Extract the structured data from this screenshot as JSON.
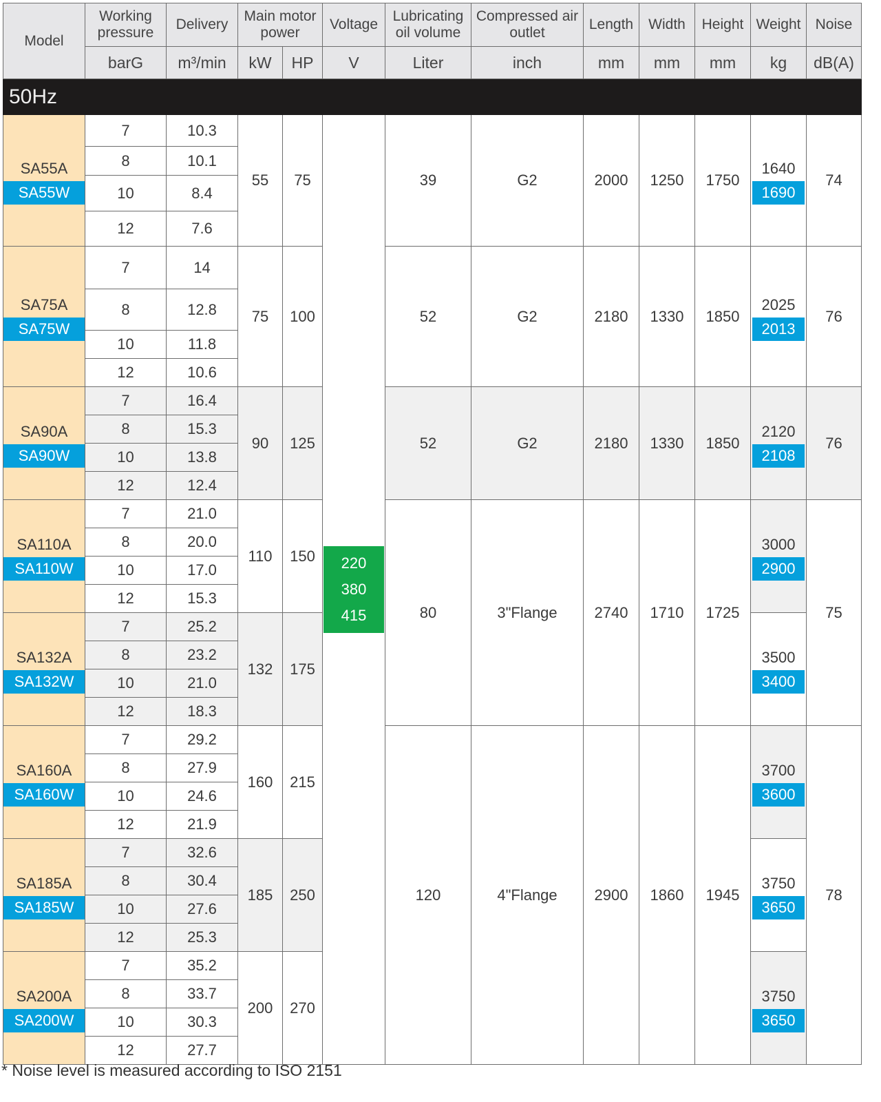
{
  "header": {
    "model": "Model",
    "working_pressure": "Working pressure",
    "delivery": "Delivery",
    "motor_power": "Main motor power",
    "voltage": "Voltage",
    "oil_volume": "Lubricating oil volume",
    "air_outlet": "Compressed air outlet",
    "length": "Length",
    "width": "Width",
    "height": "Height",
    "weight": "Weight",
    "noise": "Noise",
    "units": {
      "pressure": "barG",
      "delivery": "m³/min",
      "kw": "kW",
      "hp": "HP",
      "voltage": "V",
      "oil": "Liter",
      "outlet": "inch",
      "length": "mm",
      "width": "mm",
      "height": "mm",
      "weight": "kg",
      "noise": "dB(A)"
    }
  },
  "frequency_band": "50Hz",
  "voltage_values": [
    "220",
    "380",
    "415"
  ],
  "colors": {
    "model_bg": "#fde3b8",
    "water_cooled_blue": "#05a0dc",
    "voltage_green": "#13a84a",
    "band_black": "#1d1b1b"
  },
  "models": [
    {
      "air": "SA55A",
      "water": "SA55W",
      "pressures": [
        "7",
        "8",
        "10",
        "12"
      ],
      "delivery": [
        "10.3",
        "10.1",
        "8.4",
        "7.6"
      ],
      "kw": "55",
      "hp": "75",
      "weight_a": "1640",
      "weight_w": "1690"
    },
    {
      "air": "SA75A",
      "water": "SA75W",
      "pressures": [
        "7",
        "8",
        "10",
        "12"
      ],
      "delivery": [
        "14",
        "12.8",
        "11.8",
        "10.6"
      ],
      "kw": "75",
      "hp": "100",
      "weight_a": "2025",
      "weight_w": "2013"
    },
    {
      "air": "SA90A",
      "water": "SA90W",
      "pressures": [
        "7",
        "8",
        "10",
        "12"
      ],
      "delivery": [
        "16.4",
        "15.3",
        "13.8",
        "12.4"
      ],
      "kw": "90",
      "hp": "125",
      "weight_a": "2120",
      "weight_w": "2108"
    },
    {
      "air": "SA110A",
      "water": "SA110W",
      "pressures": [
        "7",
        "8",
        "10",
        "12"
      ],
      "delivery": [
        "21.0",
        "20.0",
        "17.0",
        "15.3"
      ],
      "kw": "110",
      "hp": "150",
      "weight_a": "3000",
      "weight_w": "2900"
    },
    {
      "air": "SA132A",
      "water": "SA132W",
      "pressures": [
        "7",
        "8",
        "10",
        "12"
      ],
      "delivery": [
        "25.2",
        "23.2",
        "21.0",
        "18.3"
      ],
      "kw": "132",
      "hp": "175",
      "weight_a": "3500",
      "weight_w": "3400"
    },
    {
      "air": "SA160A",
      "water": "SA160W",
      "pressures": [
        "7",
        "8",
        "10",
        "12"
      ],
      "delivery": [
        "29.2",
        "27.9",
        "24.6",
        "21.9"
      ],
      "kw": "160",
      "hp": "215",
      "weight_a": "3700",
      "weight_w": "3600"
    },
    {
      "air": "SA185A",
      "water": "SA185W",
      "pressures": [
        "7",
        "8",
        "10",
        "12"
      ],
      "delivery": [
        "32.6",
        "30.4",
        "27.6",
        "25.3"
      ],
      "kw": "185",
      "hp": "250",
      "weight_a": "3750",
      "weight_w": "3650"
    },
    {
      "air": "SA200A",
      "water": "SA200W",
      "pressures": [
        "7",
        "8",
        "10",
        "12"
      ],
      "delivery": [
        "35.2",
        "33.7",
        "30.3",
        "27.7"
      ],
      "kw": "200",
      "hp": "270",
      "weight_a": "3750",
      "weight_w": "3650"
    }
  ],
  "frame_groups": [
    {
      "models": 1,
      "oil": "39",
      "outlet": "G2",
      "length": "2000",
      "width": "1250",
      "height": "1750",
      "noise": "74"
    },
    {
      "models": 1,
      "oil": "52",
      "outlet": "G2",
      "length": "2180",
      "width": "1330",
      "height": "1850",
      "noise": "76"
    },
    {
      "models": 1,
      "oil": "52",
      "outlet": "G2",
      "length": "2180",
      "width": "1330",
      "height": "1850",
      "noise": "76"
    },
    {
      "models": 2,
      "oil": "80",
      "outlet": "3\"Flange",
      "length": "2740",
      "width": "1710",
      "height": "1725",
      "noise": "75"
    },
    {
      "models": 3,
      "oil": "120",
      "outlet": "4\"Flange",
      "length": "2900",
      "width": "1860",
      "height": "1945",
      "noise": "78"
    }
  ],
  "footnote": "* Noise level is measured according to ISO 2151"
}
